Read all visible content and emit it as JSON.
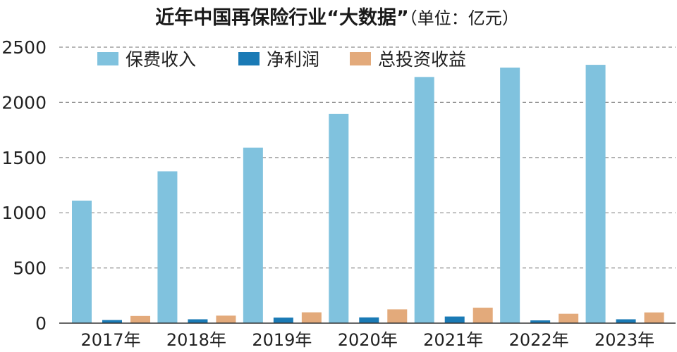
{
  "chart_data": {
    "type": "bar",
    "title": "近年中国再保险行业“大数据”",
    "subtitle": "（单位：亿元）",
    "categories": [
      "2017年",
      "2018年",
      "2019年",
      "2020年",
      "2021年",
      "2022年",
      "2023年"
    ],
    "series": [
      {
        "name": "保费收入",
        "color": "#80c2de",
        "values": [
          1110,
          1375,
          1590,
          1895,
          2230,
          2315,
          2340
        ]
      },
      {
        "name": "净利润",
        "color": "#1a7ab5",
        "values": [
          28,
          35,
          50,
          52,
          60,
          25,
          35
        ]
      },
      {
        "name": "总投资收益",
        "color": "#e3aa7b",
        "values": [
          65,
          68,
          98,
          125,
          140,
          85,
          97
        ]
      }
    ],
    "yticks": [
      "0",
      "500",
      "1000",
      "1500",
      "2000",
      "2500"
    ],
    "ylim": [
      0,
      2500
    ],
    "grid": true,
    "legend_position": "top-left"
  }
}
